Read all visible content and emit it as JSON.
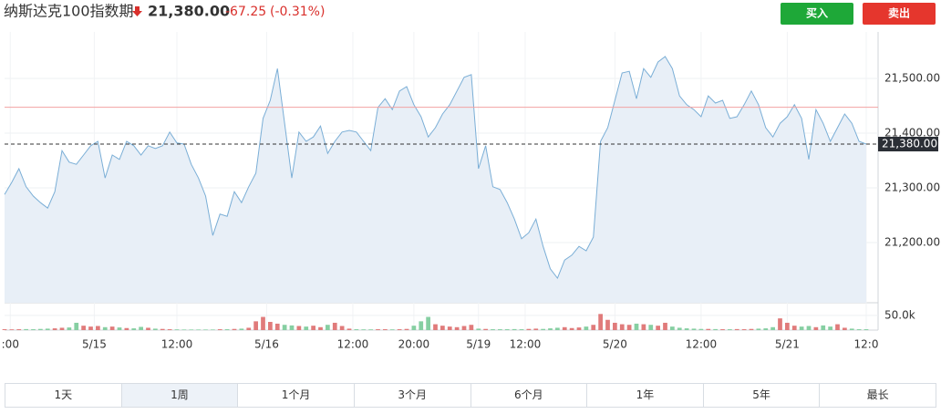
{
  "header": {
    "title": "纳斯达克100指数期",
    "change": "-67.25",
    "change_pct": "(-0.31%)"
  },
  "buttons": [
    "买入",
    "卖出"
  ],
  "chart_data": {
    "type": "area",
    "color": "#7aaed6",
    "fill": "#e8eff7",
    "values": [
      21288,
      21310,
      21335,
      21302,
      21285,
      21273,
      21263,
      21293,
      21368,
      21347,
      21343,
      21360,
      21377,
      21385,
      21318,
      21360,
      21352,
      21385,
      21377,
      21360,
      21377,
      21372,
      21377,
      21402,
      21382,
      21380,
      21343,
      21318,
      21285,
      21213,
      21252,
      21248,
      21293,
      21273,
      21302,
      21327,
      21427,
      21460,
      21518,
      21418,
      21318,
      21402,
      21385,
      21393,
      21413,
      21363,
      21385,
      21402,
      21405,
      21402,
      21385,
      21368,
      21447,
      21463,
      21443,
      21477,
      21485,
      21452,
      21430,
      21393,
      21410,
      21435,
      21452,
      21477,
      21502,
      21507,
      21335,
      21377,
      21302,
      21297,
      21273,
      21243,
      21207,
      21218,
      21243,
      21193,
      21152,
      21135,
      21168,
      21177,
      21193,
      21185,
      21210,
      21385,
      21410,
      21460,
      21510,
      21513,
      21463,
      21518,
      21502,
      21530,
      21540,
      21518,
      21468,
      21452,
      21443,
      21430,
      21468,
      21455,
      21460,
      21427,
      21430,
      21452,
      21477,
      21452,
      21410,
      21393,
      21418,
      21430,
      21452,
      21427,
      21352,
      21443,
      21418,
      21385,
      21410,
      21435,
      21418,
      21385,
      21380
    ],
    "xlim": [
      0,
      120
    ],
    "xticks": [
      {
        "value": 0.8,
        "label": ":00"
      },
      {
        "value": 12.5,
        "label": "5/15"
      },
      {
        "value": 24,
        "label": "12:00"
      },
      {
        "value": 36.5,
        "label": "5/16"
      },
      {
        "value": 48.5,
        "label": "12:00"
      },
      {
        "value": 57,
        "label": "20:00"
      },
      {
        "value": 66,
        "label": "5/19"
      },
      {
        "value": 72.5,
        "label": "12:00"
      },
      {
        "value": 85,
        "label": "5/20"
      },
      {
        "value": 97,
        "label": "12:00"
      },
      {
        "value": 109,
        "label": "5/21"
      },
      {
        "value": 120,
        "label": "12:0"
      }
    ],
    "ylim": [
      21090,
      21585
    ],
    "yticks": [
      {
        "value": 21200,
        "label": "21,200.00"
      },
      {
        "value": 21300,
        "label": "21,300.00"
      },
      {
        "value": 21400,
        "label": "21,400.00"
      },
      {
        "value": 21500,
        "label": "21,500.00"
      }
    ],
    "last_price": {
      "value": 21380,
      "label": "21,380.00"
    },
    "reference_line": {
      "value": 21447.25,
      "color": "#f2a3a3"
    },
    "volume": {
      "values": [
        3000,
        2500,
        3000,
        3500,
        3000,
        4000,
        5000,
        6000,
        8000,
        9000,
        25000,
        15000,
        12000,
        14000,
        10000,
        12000,
        9000,
        7000,
        6000,
        11000,
        8000,
        5000,
        4000,
        3000,
        2500,
        2000,
        2000,
        2000,
        2000,
        2000,
        3000,
        3000,
        4000,
        5000,
        8000,
        30000,
        45000,
        28000,
        22000,
        18000,
        16000,
        14000,
        12000,
        15000,
        10000,
        18000,
        25000,
        14000,
        5000,
        3000,
        2500,
        2500,
        3000,
        3000,
        2500,
        3000,
        4000,
        15000,
        30000,
        45000,
        20000,
        15000,
        12000,
        10000,
        14000,
        18000,
        5000,
        4000,
        3000,
        3000,
        3000,
        3500,
        3000,
        4000,
        5000,
        4000,
        6000,
        8000,
        10000,
        7000,
        9000,
        12000,
        18000,
        55000,
        35000,
        25000,
        20000,
        18000,
        22000,
        20000,
        18000,
        15000,
        25000,
        12000,
        8000,
        6000,
        5000,
        4000,
        4000,
        3500,
        3000,
        3000,
        3500,
        3000,
        4000,
        5000,
        6000,
        10000,
        40000,
        25000,
        15000,
        12000,
        14000,
        10000,
        16000,
        12000,
        20000,
        8000,
        5000,
        3000,
        3000
      ],
      "ylim": [
        0,
        84000
      ],
      "yticks": [
        {
          "value": 50000,
          "label": "50.0k"
        }
      ],
      "up_color": "#e07b7b",
      "down_color": "#86cfa2"
    }
  },
  "tabs": [
    "1天",
    "1周",
    "1个月",
    "3个月",
    "6个月",
    "1年",
    "5年",
    "最长"
  ],
  "selected_tab": 1
}
